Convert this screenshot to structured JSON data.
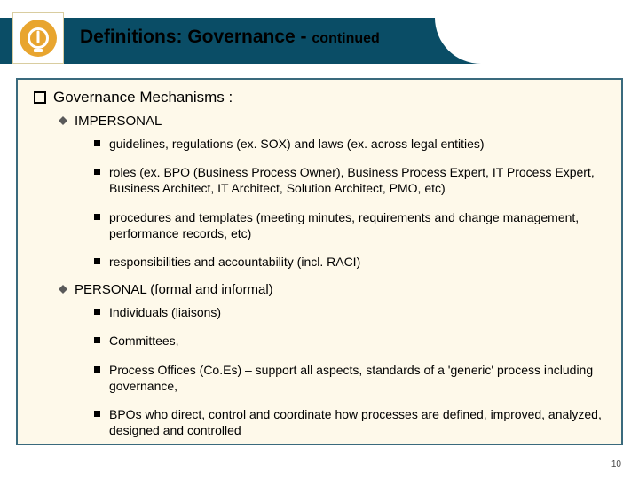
{
  "colors": {
    "header_band": "#0a4d66",
    "frame_border": "#3a6a7d",
    "frame_bg": "#fef9ea",
    "logo_ring": "#e8a52f",
    "text": "#000000"
  },
  "title": {
    "main": "Definitions: Governance",
    "sep": " - ",
    "suffix": "continued"
  },
  "content": {
    "heading": "Governance Mechanisms :",
    "sections": [
      {
        "label": "IMPERSONAL",
        "items": [
          "guidelines, regulations (ex. SOX) and laws (ex. across legal entities)",
          "roles (ex. BPO (Business Process Owner), Business Process Expert, IT Process Expert, Business Architect, IT Architect, Solution Architect, PMO, etc)",
          "procedures and templates (meeting minutes, requirements and change management, performance records, etc)",
          "responsibilities and accountability (incl. RACI)"
        ]
      },
      {
        "label": "PERSONAL (formal and informal)",
        "items": [
          "Individuals (liaisons)",
          "Committees,",
          "Process Offices (Co.Es) – support all aspects, standards of a 'generic' process including governance,",
          "BPOs who direct, control and coordinate how processes are defined, improved, analyzed, designed and controlled"
        ]
      }
    ]
  },
  "page_number": "10"
}
